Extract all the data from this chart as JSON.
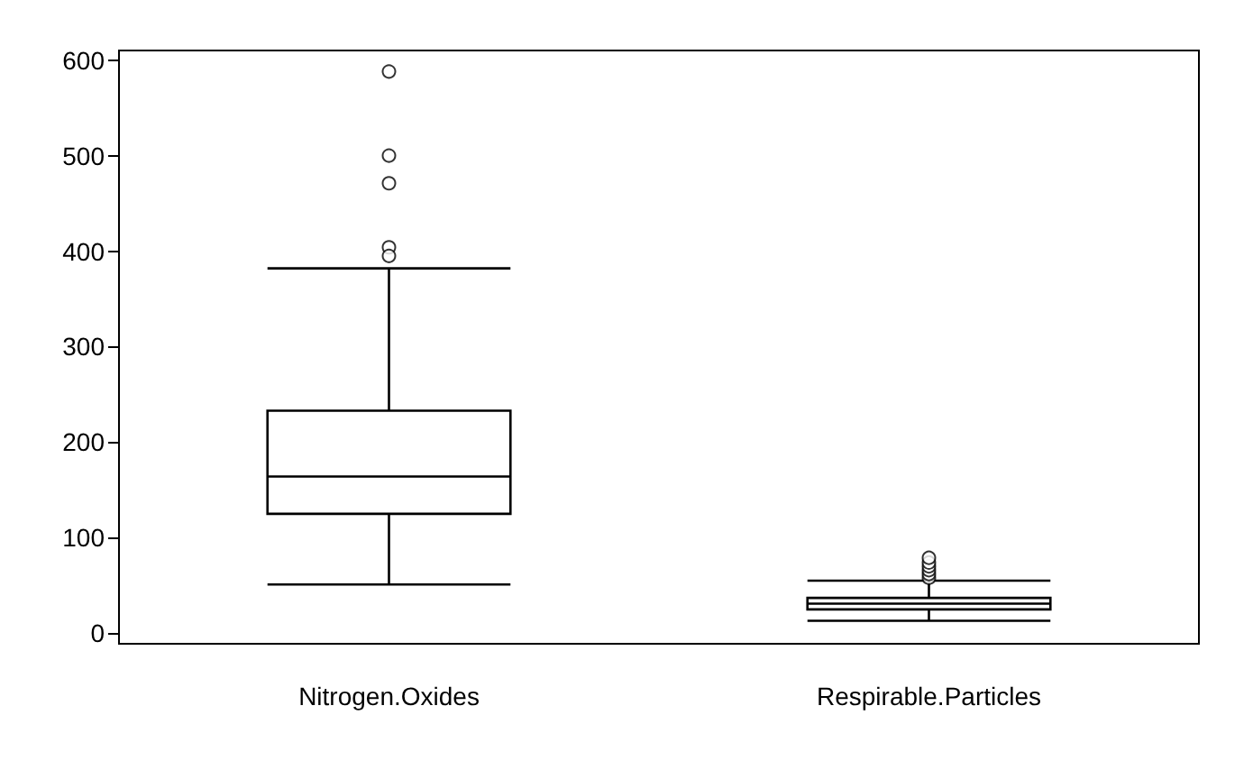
{
  "chart_data": {
    "type": "box",
    "categories": [
      "Nitrogen.Oxides",
      "Respirable.Particles"
    ],
    "boxes": [
      {
        "low": 51,
        "q1": 125,
        "median": 164,
        "q3": 233,
        "high": 382,
        "outliers": [
          588,
          500,
          471,
          404,
          395
        ]
      },
      {
        "low": 13,
        "q1": 25,
        "median": 31,
        "q3": 37,
        "high": 55,
        "outliers": [
          58,
          62,
          66,
          70,
          74,
          79
        ]
      }
    ],
    "color": "#000000",
    "ylim": [
      -11,
      610
    ],
    "yticks": [
      0,
      100,
      200,
      300,
      400,
      500,
      600
    ],
    "grid": false,
    "marker": "circle"
  }
}
